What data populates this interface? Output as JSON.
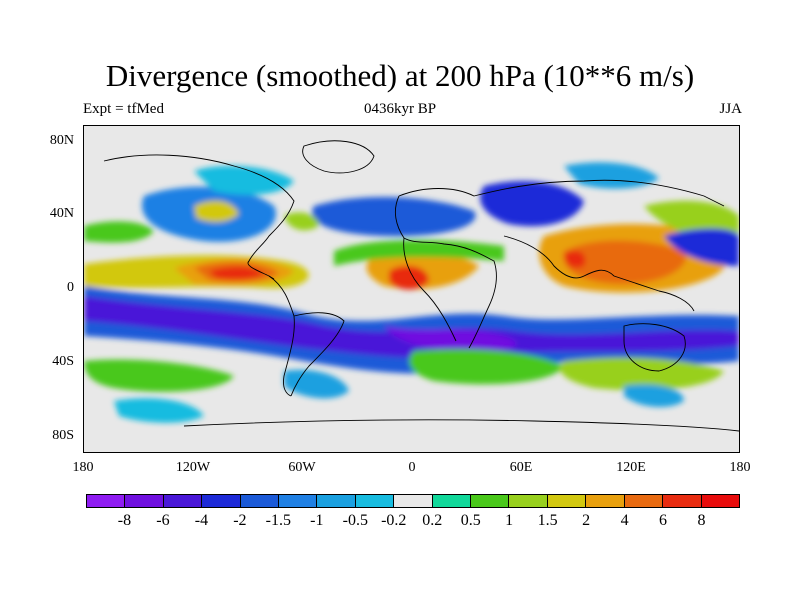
{
  "title": "Divergence (smoothed) at 200 hPa (10**6 m/s)",
  "subtitle_left": "Expt = tfMed",
  "subtitle_center": "0436kyr BP",
  "subtitle_right": "JJA",
  "y_ticks": [
    "80N",
    "40N",
    "0",
    "40S",
    "80S"
  ],
  "x_ticks": [
    "180",
    "120W",
    "60W",
    "0",
    "60E",
    "120E",
    "180"
  ],
  "colorbar": {
    "colors": [
      "#8f1cf2",
      "#7010e0",
      "#4a18d8",
      "#1d2ad8",
      "#1b5ad8",
      "#1f80e4",
      "#1aa0e0",
      "#18bce0",
      "#e8e8e8",
      "#10d89a",
      "#49c81a",
      "#98d01e",
      "#d2c810",
      "#e8a00e",
      "#e86a10",
      "#e82c10",
      "#e80c0c"
    ],
    "labels": [
      "-8",
      "-6",
      "-4",
      "-2",
      "-1.5",
      "-1",
      "-0.5",
      "-0.2",
      "0.2",
      "0.5",
      "1",
      "1.5",
      "2",
      "4",
      "6",
      "8"
    ]
  }
}
